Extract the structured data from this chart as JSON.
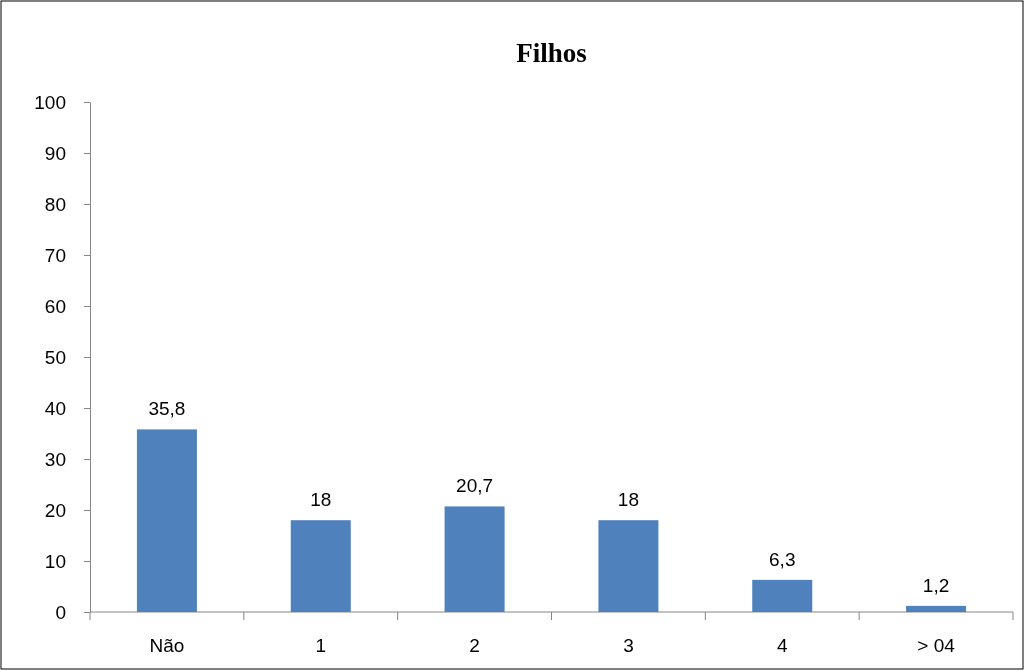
{
  "chart_data": {
    "type": "bar",
    "title": "Filhos",
    "categories": [
      "Não",
      "1",
      "2",
      "3",
      "4",
      "> 04"
    ],
    "values": [
      35.8,
      18,
      20.7,
      18,
      6.3,
      1.2
    ],
    "value_labels": [
      "35,8",
      "18",
      "20,7",
      "18",
      "6,3",
      "1,2"
    ],
    "color": "#4f81bd",
    "ylim": [
      0,
      100
    ],
    "yticks": [
      0,
      10,
      20,
      30,
      40,
      50,
      60,
      70,
      80,
      90,
      100
    ],
    "grid": false
  }
}
